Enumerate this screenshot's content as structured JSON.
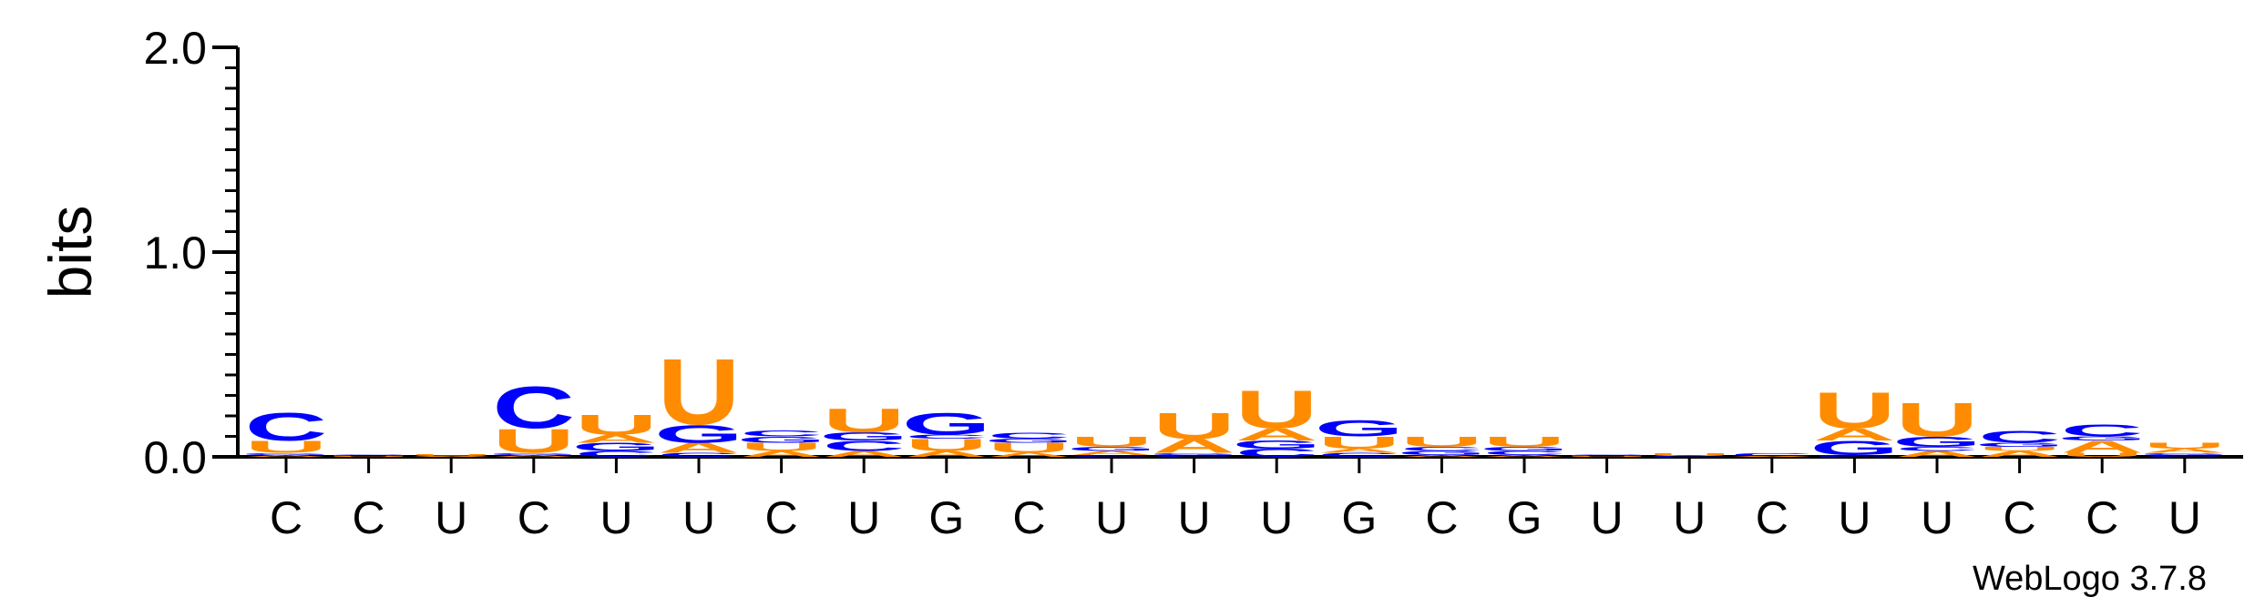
{
  "chart_data": {
    "type": "sequence-logo",
    "ylabel": "bits",
    "ylim": [
      0,
      2.0
    ],
    "y_ticks": [
      "0.0",
      "1.0",
      "2.0"
    ],
    "credit": "WebLogo 3.7.8",
    "colors": {
      "A": "#ff8c00",
      "C": "#0000ff",
      "G": "#0000ff",
      "U": "#ff8c00"
    },
    "positions": [
      {
        "label": "C",
        "stack": [
          {
            "l": "A",
            "h": 0.01
          },
          {
            "l": "G",
            "h": 0.01
          },
          {
            "l": "U",
            "h": 0.06
          },
          {
            "l": "C",
            "h": 0.14
          }
        ]
      },
      {
        "label": "C",
        "stack": [
          {
            "l": "U",
            "h": 0.005
          },
          {
            "l": "C",
            "h": 0.005
          }
        ]
      },
      {
        "label": "U",
        "stack": [
          {
            "l": "A",
            "h": 0.005
          },
          {
            "l": "U",
            "h": 0.01
          }
        ]
      },
      {
        "label": "C",
        "stack": [
          {
            "l": "A",
            "h": 0.01
          },
          {
            "l": "G",
            "h": 0.01
          },
          {
            "l": "U",
            "h": 0.12
          },
          {
            "l": "C",
            "h": 0.21
          }
        ]
      },
      {
        "label": "U",
        "stack": [
          {
            "l": "C",
            "h": 0.03
          },
          {
            "l": "G",
            "h": 0.04
          },
          {
            "l": "A",
            "h": 0.04
          },
          {
            "l": "U",
            "h": 0.1
          }
        ]
      },
      {
        "label": "U",
        "stack": [
          {
            "l": "C",
            "h": 0.02
          },
          {
            "l": "A",
            "h": 0.05
          },
          {
            "l": "G",
            "h": 0.09
          },
          {
            "l": "U",
            "h": 0.33
          }
        ]
      },
      {
        "label": "C",
        "stack": [
          {
            "l": "A",
            "h": 0.03
          },
          {
            "l": "U",
            "h": 0.04
          },
          {
            "l": "G",
            "h": 0.03
          },
          {
            "l": "C",
            "h": 0.03
          }
        ]
      },
      {
        "label": "U",
        "stack": [
          {
            "l": "A",
            "h": 0.03
          },
          {
            "l": "C",
            "h": 0.05
          },
          {
            "l": "G",
            "h": 0.04
          },
          {
            "l": "U",
            "h": 0.12
          }
        ]
      },
      {
        "label": "G",
        "stack": [
          {
            "l": "A",
            "h": 0.03
          },
          {
            "l": "U",
            "h": 0.06
          },
          {
            "l": "C",
            "h": 0.02
          },
          {
            "l": "G",
            "h": 0.11
          }
        ]
      },
      {
        "label": "C",
        "stack": [
          {
            "l": "A",
            "h": 0.02
          },
          {
            "l": "U",
            "h": 0.05
          },
          {
            "l": "G",
            "h": 0.02
          },
          {
            "l": "C",
            "h": 0.03
          }
        ]
      },
      {
        "label": "U",
        "stack": [
          {
            "l": "C",
            "h": 0.01
          },
          {
            "l": "A",
            "h": 0.02
          },
          {
            "l": "G",
            "h": 0.02
          },
          {
            "l": "U",
            "h": 0.05
          }
        ]
      },
      {
        "label": "U",
        "stack": [
          {
            "l": "C",
            "h": 0.01
          },
          {
            "l": "G",
            "h": 0.01
          },
          {
            "l": "A",
            "h": 0.07
          },
          {
            "l": "U",
            "h": 0.13
          }
        ]
      },
      {
        "label": "U",
        "stack": [
          {
            "l": "C",
            "h": 0.04
          },
          {
            "l": "G",
            "h": 0.04
          },
          {
            "l": "A",
            "h": 0.06
          },
          {
            "l": "U",
            "h": 0.19
          }
        ]
      },
      {
        "label": "G",
        "stack": [
          {
            "l": "C",
            "h": 0.02
          },
          {
            "l": "A",
            "h": 0.02
          },
          {
            "l": "U",
            "h": 0.06
          },
          {
            "l": "G",
            "h": 0.08
          }
        ]
      },
      {
        "label": "C",
        "stack": [
          {
            "l": "A",
            "h": 0.01
          },
          {
            "l": "G",
            "h": 0.02
          },
          {
            "l": "C",
            "h": 0.02
          },
          {
            "l": "U",
            "h": 0.05
          }
        ]
      },
      {
        "label": "G",
        "stack": [
          {
            "l": "A",
            "h": 0.01
          },
          {
            "l": "C",
            "h": 0.02
          },
          {
            "l": "G",
            "h": 0.02
          },
          {
            "l": "U",
            "h": 0.05
          }
        ]
      },
      {
        "label": "U",
        "stack": [
          {
            "l": "U",
            "h": 0.005
          },
          {
            "l": "C",
            "h": 0.005
          }
        ]
      },
      {
        "label": "U",
        "stack": [
          {
            "l": "C",
            "h": 0.005
          },
          {
            "l": "U",
            "h": 0.015
          }
        ]
      },
      {
        "label": "C",
        "stack": [
          {
            "l": "A",
            "h": 0.005
          },
          {
            "l": "C",
            "h": 0.015
          }
        ]
      },
      {
        "label": "U",
        "stack": [
          {
            "l": "C",
            "h": 0.01
          },
          {
            "l": "G",
            "h": 0.07
          },
          {
            "l": "A",
            "h": 0.06
          },
          {
            "l": "U",
            "h": 0.18
          }
        ]
      },
      {
        "label": "U",
        "stack": [
          {
            "l": "A",
            "h": 0.03
          },
          {
            "l": "C",
            "h": 0.02
          },
          {
            "l": "G",
            "h": 0.05
          },
          {
            "l": "U",
            "h": 0.17
          }
        ]
      },
      {
        "label": "C",
        "stack": [
          {
            "l": "A",
            "h": 0.03
          },
          {
            "l": "U",
            "h": 0.02
          },
          {
            "l": "G",
            "h": 0.02
          },
          {
            "l": "C",
            "h": 0.06
          }
        ]
      },
      {
        "label": "C",
        "stack": [
          {
            "l": "U",
            "h": 0.02
          },
          {
            "l": "A",
            "h": 0.06
          },
          {
            "l": "G",
            "h": 0.02
          },
          {
            "l": "C",
            "h": 0.06
          }
        ]
      },
      {
        "label": "U",
        "stack": [
          {
            "l": "C",
            "h": 0.01
          },
          {
            "l": "G",
            "h": 0.01
          },
          {
            "l": "A",
            "h": 0.02
          },
          {
            "l": "U",
            "h": 0.03
          }
        ]
      }
    ]
  }
}
